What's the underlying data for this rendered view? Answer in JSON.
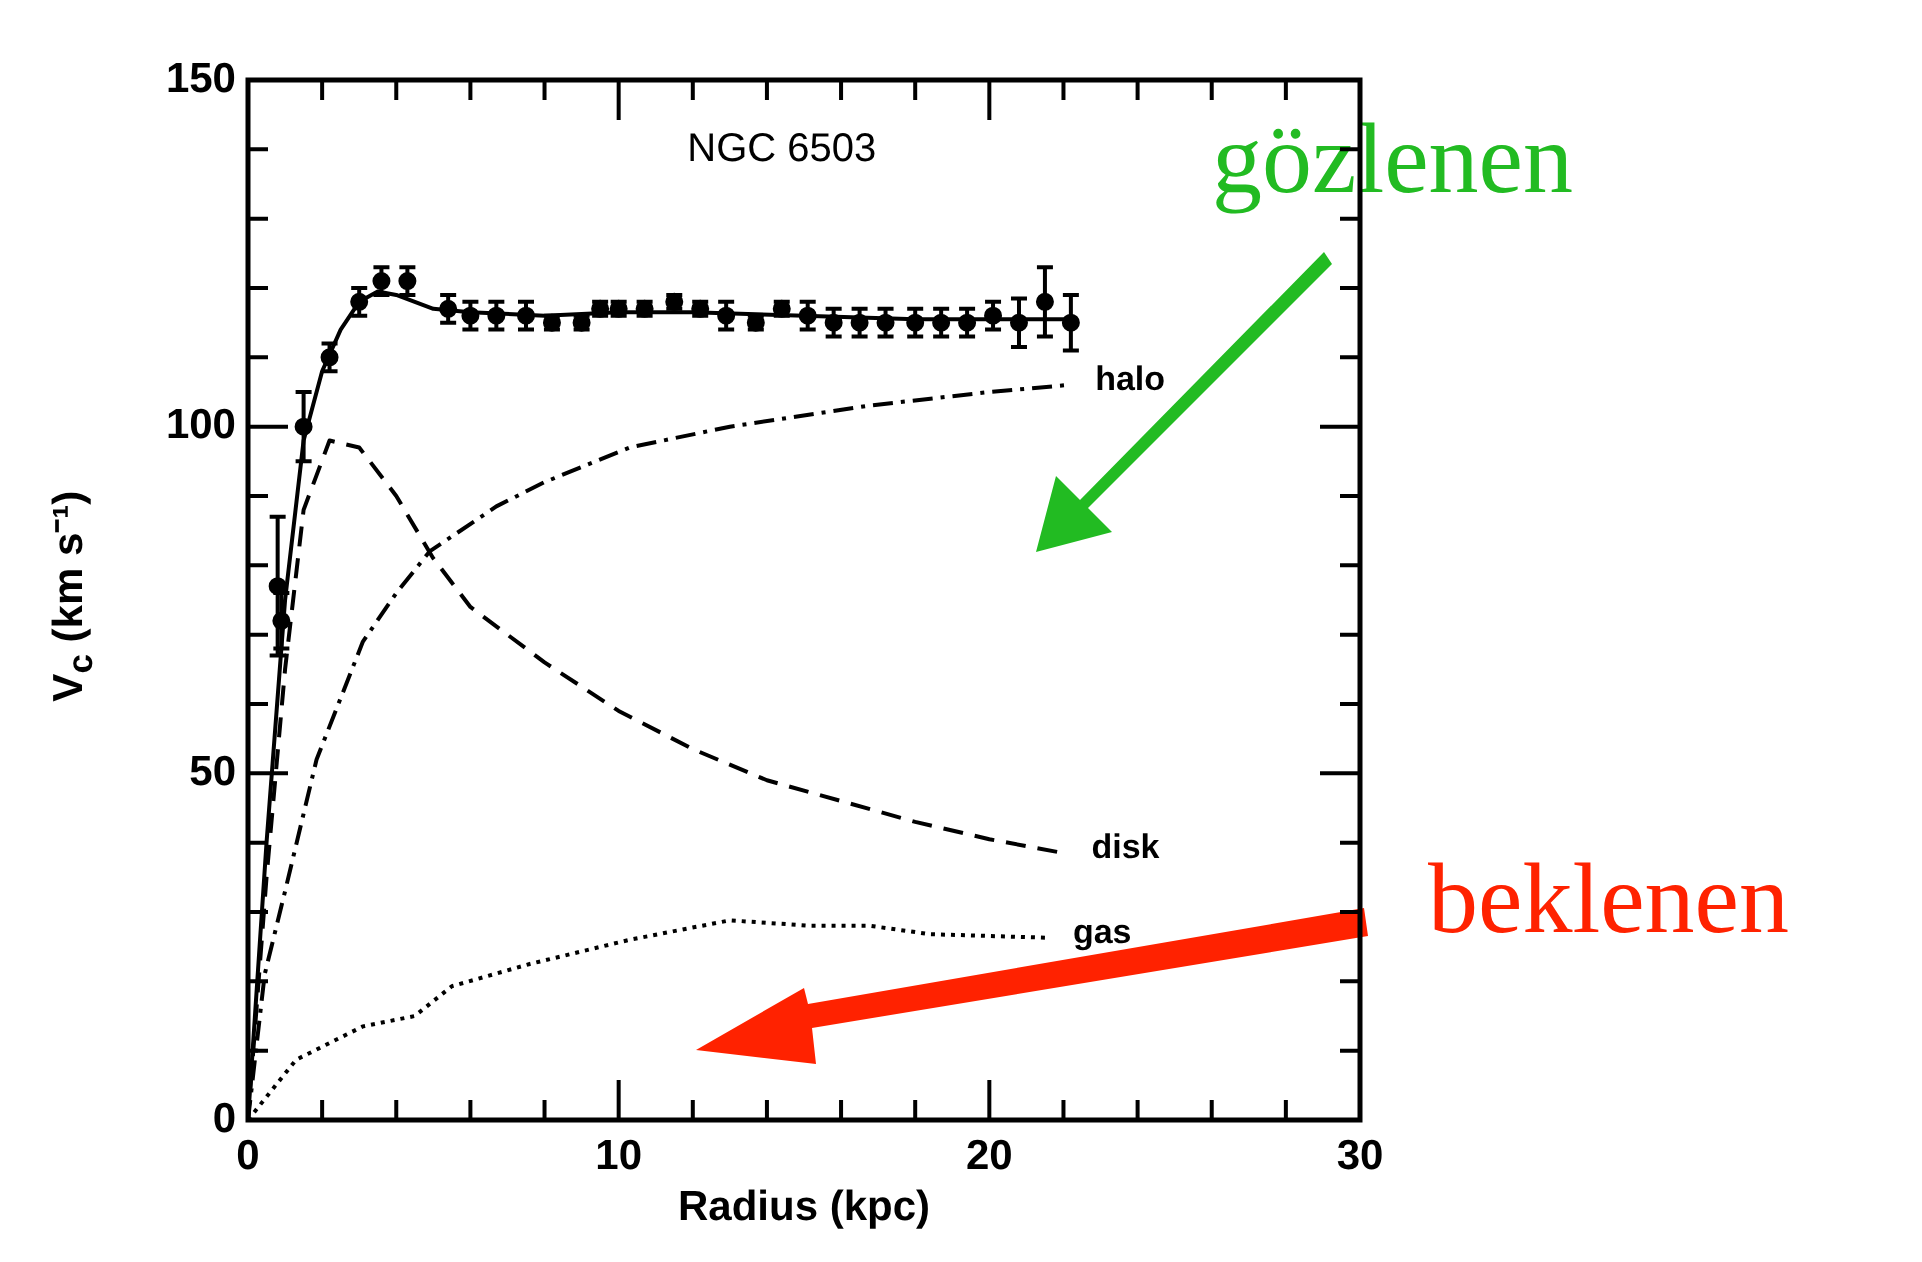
{
  "chart_data": {
    "type": "line",
    "title": "NGC 6503",
    "xlabel": "Radius (kpc)",
    "ylabel": "V$_{c}$ (km s⁻¹)",
    "xlim": [
      0,
      30
    ],
    "ylim": [
      0,
      150
    ],
    "xticks": [
      0,
      {
        "value": 2,
        "label": null
      },
      {
        "value": 4,
        "label": null
      },
      {
        "value": 6,
        "label": null
      },
      {
        "value": 8,
        "label": null
      },
      10,
      {
        "value": 12,
        "label": null
      },
      {
        "value": 14,
        "label": null
      },
      {
        "value": 16,
        "label": null
      },
      {
        "value": 18,
        "label": null
      },
      20,
      {
        "value": 22,
        "label": null
      },
      {
        "value": 24,
        "label": null
      },
      {
        "value": 26,
        "label": null
      },
      {
        "value": 28,
        "label": null
      },
      30
    ],
    "yticks": [
      0,
      {
        "value": 10,
        "label": null
      },
      {
        "value": 20,
        "label": null
      },
      {
        "value": 30,
        "label": null
      },
      {
        "value": 40,
        "label": null
      },
      50,
      {
        "value": 60,
        "label": null
      },
      {
        "value": 70,
        "label": null
      },
      {
        "value": 80,
        "label": null
      },
      {
        "value": 90,
        "label": null
      },
      100,
      {
        "value": 110,
        "label": null
      },
      {
        "value": 120,
        "label": null
      },
      {
        "value": 130,
        "label": null
      },
      {
        "value": 140,
        "label": null
      },
      150
    ],
    "grid": false,
    "legend": false,
    "annotations": [
      "gözlenen",
      "beklenen"
    ],
    "series": [
      {
        "type": "scatter",
        "marker": "circle",
        "color": "#000000",
        "x": [
          0.8,
          0.9,
          1.5,
          2.2,
          3.0,
          3.6,
          4.3,
          5.4,
          6.0,
          6.7,
          7.5,
          8.2,
          9.0,
          9.5,
          10.0,
          10.7,
          11.5,
          12.2,
          12.9,
          13.7,
          14.4,
          15.1,
          15.8,
          16.5,
          17.2,
          18.0,
          18.7,
          19.4,
          20.1,
          20.8,
          21.5,
          22.2
        ],
        "values": [
          77,
          72,
          100,
          110,
          118,
          121,
          121,
          117,
          116,
          116,
          116,
          115,
          115,
          117,
          117,
          117,
          118,
          117,
          116,
          115,
          117,
          116,
          115,
          115,
          115,
          115,
          115,
          115,
          116,
          115,
          118,
          115
        ],
        "errors": [
          10,
          4,
          5,
          2,
          2,
          2,
          2,
          2,
          2,
          2,
          2,
          1,
          1,
          1,
          1,
          1,
          1,
          1,
          2,
          1,
          1,
          2,
          2,
          2,
          2,
          2,
          2,
          2,
          2,
          3.5,
          5,
          4
        ]
      },
      {
        "type": "line",
        "line_style": "solid",
        "color": "#000000",
        "x": [
          0,
          0.5,
          1,
          1.5,
          2,
          2.5,
          3,
          3.5,
          4,
          5,
          6,
          8,
          10,
          12,
          15,
          18,
          20,
          22.2
        ],
        "values": [
          0,
          40,
          75,
          98,
          108,
          114,
          118,
          119.5,
          119,
          117,
          116.5,
          116,
          116.5,
          116.5,
          116,
          115.5,
          115.5,
          115.5
        ]
      },
      {
        "name": "halo",
        "type": "line",
        "line_style": "dashdot",
        "color": "#000000",
        "x": [
          0,
          0.45,
          1,
          1.85,
          3.1,
          4,
          4.9,
          6.7,
          8,
          10.3,
          13,
          16.7,
          20,
          22.1
        ],
        "values": [
          0,
          21,
          33,
          52,
          69,
          76,
          82,
          88.5,
          92,
          97,
          100,
          103,
          105,
          106
        ]
      },
      {
        "name": "disk",
        "type": "line",
        "line_style": "dashed",
        "color": "#000000",
        "x": [
          0,
          0.5,
          1,
          1.5,
          2.2,
          3,
          4,
          5,
          6,
          7,
          8,
          10,
          12,
          14,
          16,
          18,
          20,
          22
        ],
        "values": [
          0,
          35,
          65,
          88,
          98,
          97,
          90,
          81,
          74,
          70,
          66,
          59,
          53.5,
          49,
          46,
          43,
          40.5,
          38.5
        ]
      },
      {
        "name": "gas",
        "type": "line",
        "line_style": "dotted",
        "color": "#000000",
        "x": [
          0,
          1.3,
          3.1,
          4.5,
          5.5,
          7.6,
          10.3,
          13,
          15.2,
          16.8,
          18.4,
          21.5
        ],
        "values": [
          0,
          8.7,
          13.5,
          15,
          19.3,
          22.5,
          26,
          28.8,
          28,
          28,
          26.8,
          26.3
        ]
      }
    ]
  }
}
